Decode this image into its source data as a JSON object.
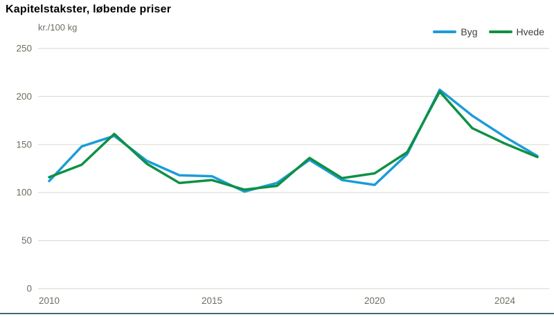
{
  "page": {
    "title": "Kapitelstakster, løbende priser",
    "unit_label": "kr./100 kg"
  },
  "legend": [
    {
      "label": "Byg",
      "color": "#1b9cd9"
    },
    {
      "label": "Hvede",
      "color": "#0f9044"
    }
  ],
  "colors": {
    "grid": "#dedcd3",
    "tick_text": "#6f6d62",
    "title_text": "#000000",
    "legend_text": "#3f3f3f",
    "footer_bar": "#44687a",
    "background": "#ffffff"
  },
  "chart_data": {
    "type": "line",
    "title": "Kapitelstakster, løbende priser",
    "xlabel": "",
    "ylabel": "kr./100 kg",
    "x": [
      2010,
      2011,
      2012,
      2013,
      2014,
      2015,
      2016,
      2017,
      2018,
      2019,
      2020,
      2021,
      2022,
      2023,
      2024,
      2025
    ],
    "series": [
      {
        "name": "Byg",
        "color": "#1b9cd9",
        "values": [
          112,
          148,
          159,
          133,
          118,
          117,
          101,
          110,
          134,
          113,
          108,
          140,
          207,
          180,
          158,
          138
        ]
      },
      {
        "name": "Hvede",
        "color": "#0f9044",
        "values": [
          116,
          129,
          161,
          130,
          110,
          113,
          103,
          107,
          136,
          115,
          120,
          142,
          205,
          167,
          151,
          137
        ]
      }
    ],
    "ylim": [
      0,
      250
    ],
    "yticks": [
      0,
      50,
      100,
      150,
      200,
      250
    ],
    "xticks": [
      2010,
      2015,
      2020,
      2024
    ],
    "grid": "horizontal",
    "legend_position": "top-right",
    "line_width": 3.5
  }
}
